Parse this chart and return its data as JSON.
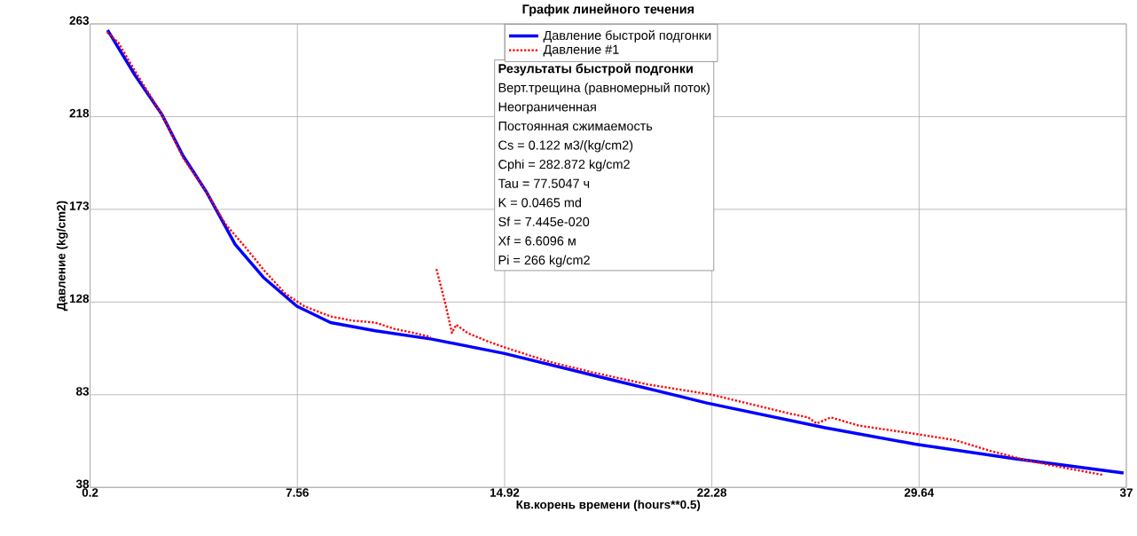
{
  "chart_data": {
    "type": "line",
    "title": "График линейного течения",
    "xlabel": "Кв.корень времени (hours**0.5)",
    "ylabel": "Давление (kg/cm2)",
    "xlim": [
      0.2,
      37
    ],
    "ylim": [
      38,
      263
    ],
    "xticks": [
      0.2,
      7.56,
      14.92,
      22.28,
      29.64,
      37
    ],
    "yticks": [
      38,
      83,
      128,
      173,
      218,
      263
    ],
    "grid": true,
    "legend": "top",
    "marker": "none",
    "series": [
      {
        "name": "Давление быстрой подгонки",
        "color": "#0000ff",
        "line_style": "solid",
        "x": [
          0.82,
          1.8,
          2.75,
          3.5,
          4.35,
          5.35,
          6.35,
          7.54,
          8.74,
          10.33,
          12.33,
          14.92,
          18.5,
          22.1,
          26.3,
          29.5,
          33.0,
          36.9
        ],
        "values": [
          260,
          238,
          219,
          199,
          181,
          156,
          140,
          126,
          118,
          114,
          110,
          103,
          91,
          79,
          67,
          59,
          52,
          45
        ]
      },
      {
        "name": "Давление #1",
        "color": "#ff0000",
        "line_style": "dotted",
        "x": [
          0.8,
          1.2,
          1.8,
          2.75,
          3.5,
          4.35,
          5.0,
          5.75,
          6.4,
          7.14,
          7.8,
          8.74,
          9.5,
          10.33,
          11.0,
          11.7,
          12.3,
          12.4,
          12.5,
          12.8,
          13.05,
          13.2,
          13.6,
          14.3,
          14.92,
          16.5,
          18.0,
          20.0,
          22.28,
          23.5,
          25.0,
          25.7,
          26.0,
          26.5,
          27.5,
          29.5,
          30.9,
          32.1,
          33.5,
          35.0,
          36.2
        ],
        "values": [
          259,
          254,
          240,
          219,
          198,
          181,
          166,
          154,
          143,
          132,
          126,
          121,
          119,
          118,
          115,
          113,
          111,
          null,
          144,
          128,
          113,
          117,
          113,
          109,
          106,
          99,
          94,
          88,
          83,
          79,
          74,
          72,
          69,
          72,
          68,
          64,
          61,
          56,
          51,
          47,
          44
        ]
      }
    ],
    "annotations": [
      "Результаты быстрой подгонки",
      "Верт.трещина (равномерный поток)",
      "Неограниченная",
      "Постоянная сжимаемость",
      "Cs = 0.122 м3/(kg/cm2)",
      "Cphi = 282.872 kg/cm2",
      "Tau = 77.5047 ч",
      "K = 0.0465 md",
      "Sf = 7.445e-020",
      "Xf = 6.6096 м",
      "Pi = 266 kg/cm2"
    ]
  }
}
